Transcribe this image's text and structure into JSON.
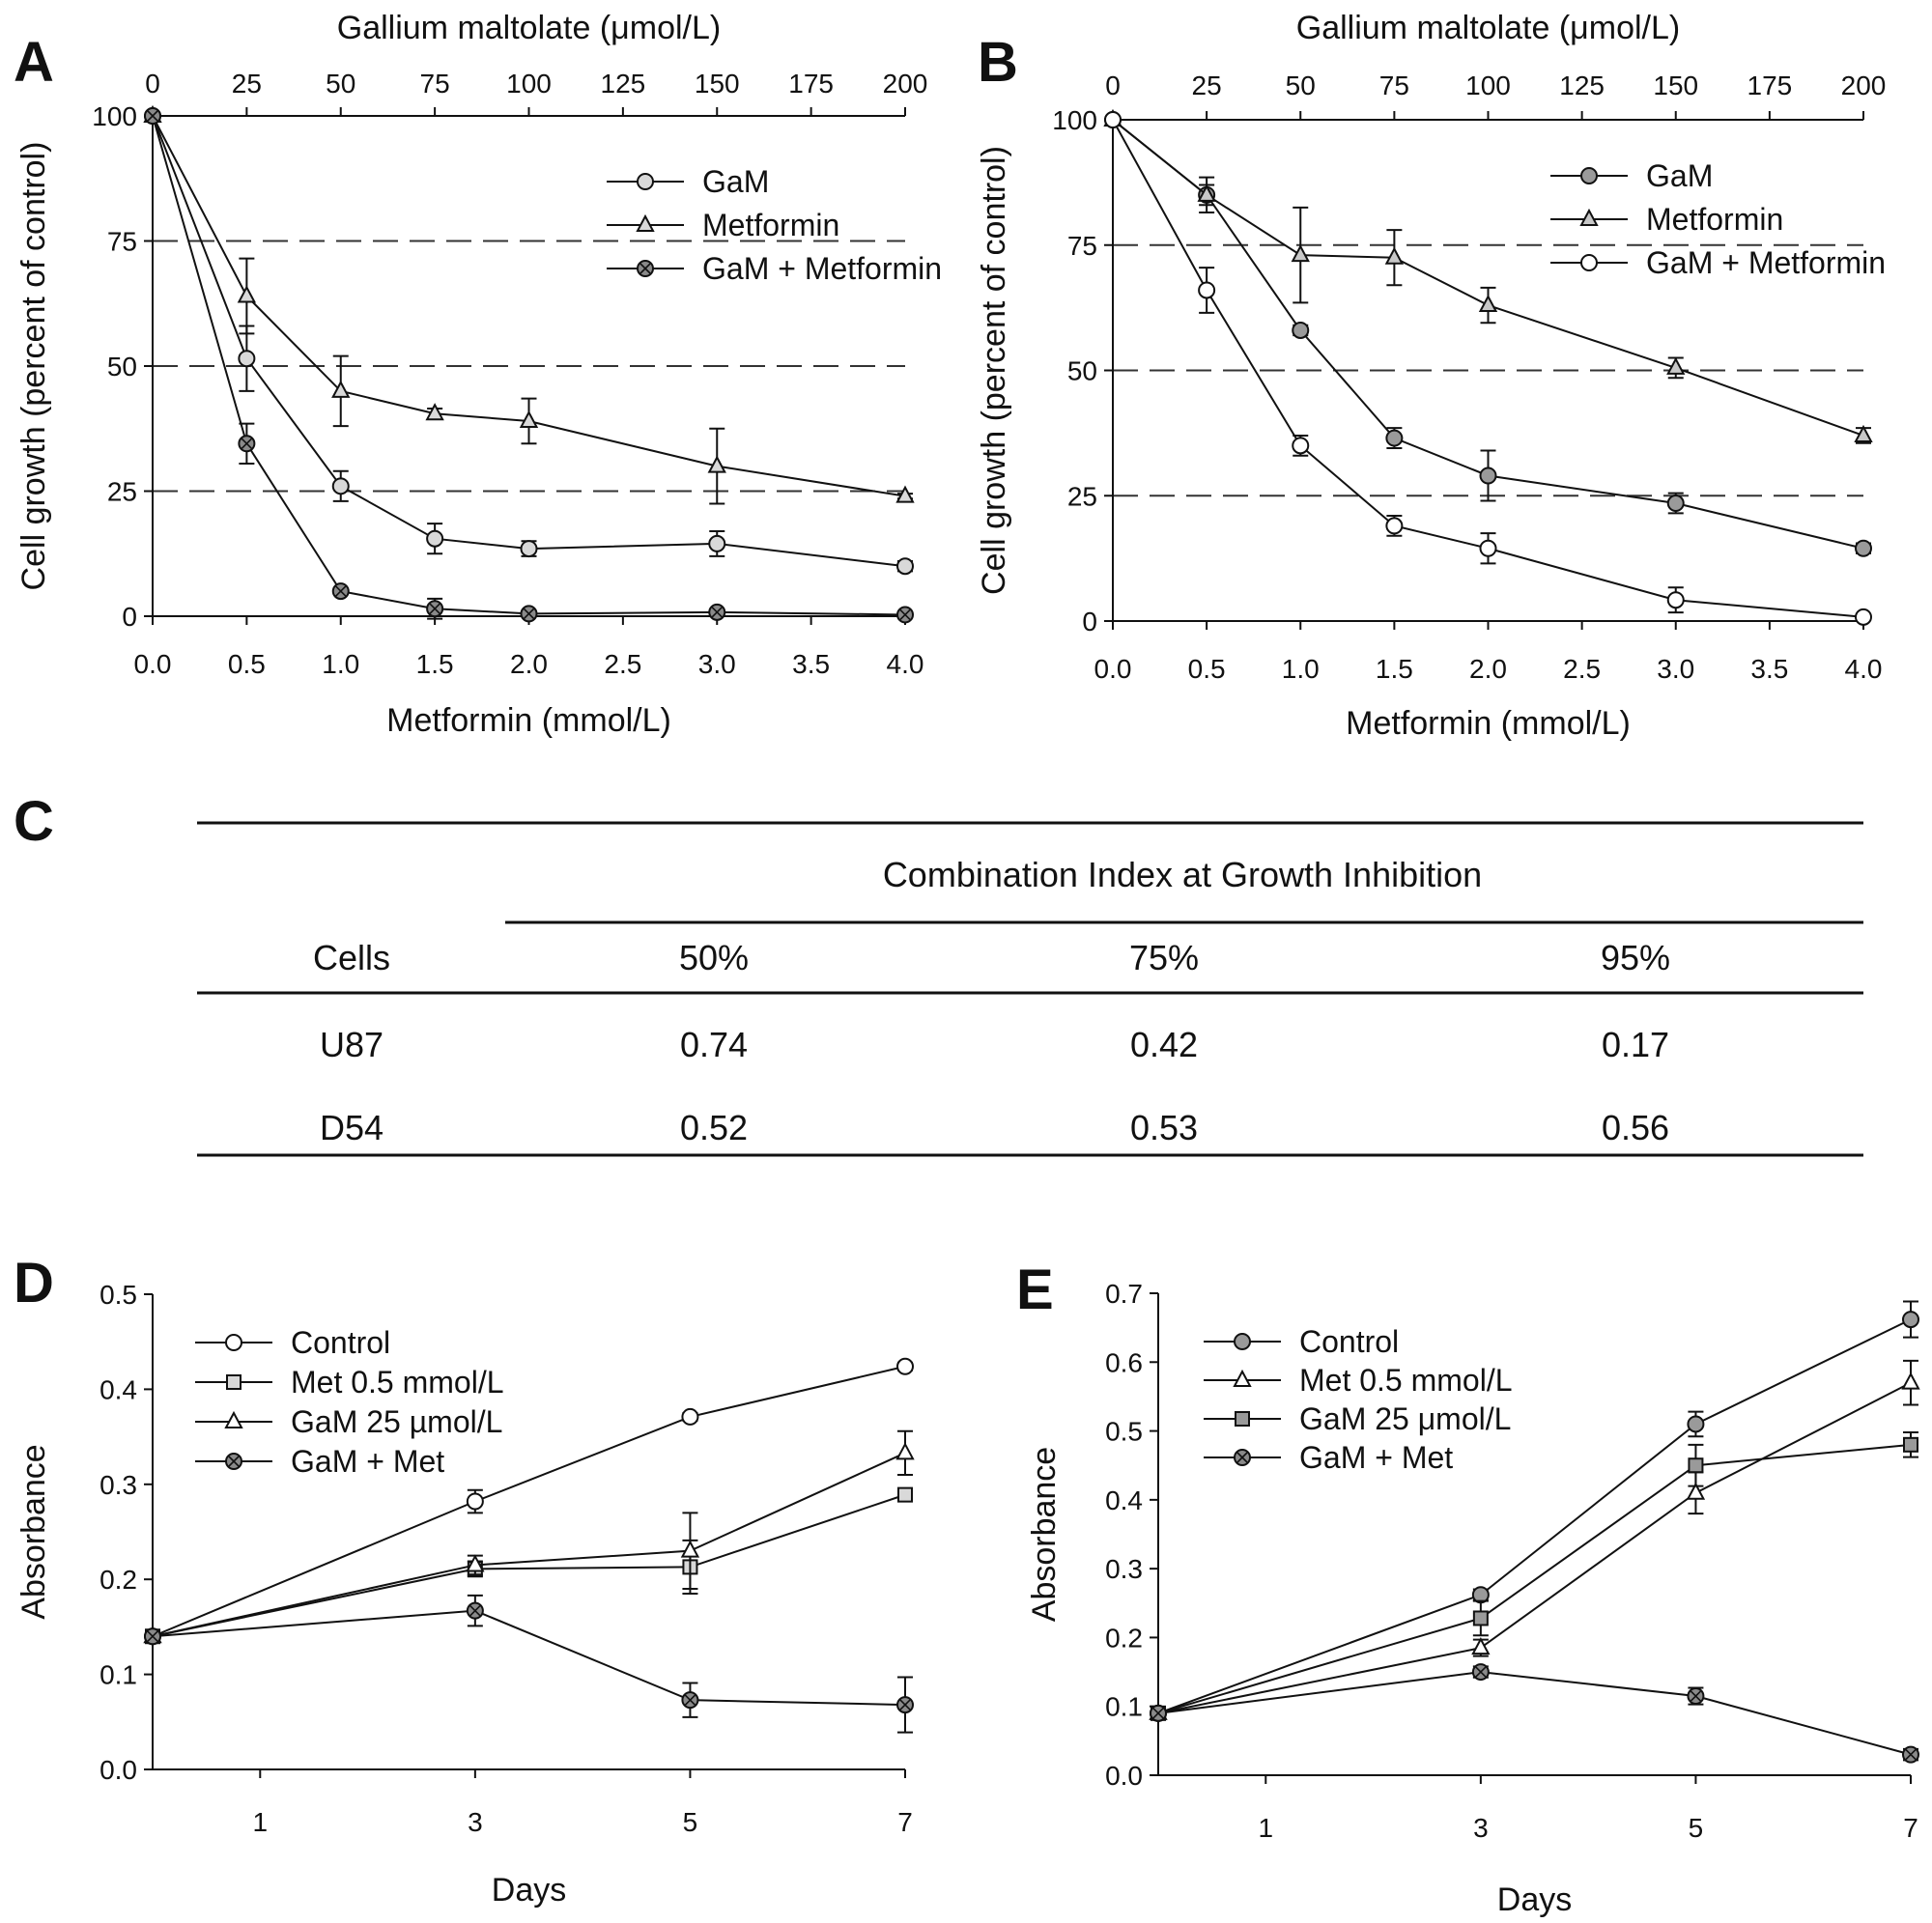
{
  "panel_letters": {
    "A": "A",
    "B": "B",
    "C": "C",
    "D": "D",
    "E": "E"
  },
  "chart_data": [
    {
      "panel": "A",
      "type": "line",
      "xlabel": "Metformin (mmol/L)",
      "x2label": "Gallium maltolate (μmol/L)",
      "ylabel": "Cell growth (percent of control)",
      "xlim": [
        0,
        4
      ],
      "x2lim": [
        0,
        200
      ],
      "ylim": [
        0,
        100
      ],
      "xticks": [
        "0.0",
        "0.5",
        "1.0",
        "1.5",
        "2.0",
        "2.5",
        "3.0",
        "3.5",
        "4.0"
      ],
      "x2ticks": [
        "0",
        "25",
        "50",
        "75",
        "100",
        "125",
        "150",
        "175",
        "200"
      ],
      "yticks": [
        "0",
        "25",
        "50",
        "75",
        "100"
      ],
      "reference_lines": [
        25,
        50,
        75
      ],
      "legend_position": "top-right",
      "x": [
        0,
        0.5,
        1,
        1.5,
        2,
        3,
        4
      ],
      "series": [
        {
          "name": "GaM",
          "marker": "circle",
          "fill": "#d9d9d9",
          "y": [
            100,
            51.5,
            26,
            15.5,
            13.5,
            14.5,
            10
          ],
          "err": [
            0,
            6.5,
            3,
            3,
            1.5,
            2.5,
            1
          ]
        },
        {
          "name": "Metformin",
          "marker": "triangle",
          "fill": "#d9d9d9",
          "y": [
            100,
            64,
            45,
            40.5,
            39,
            30,
            24
          ],
          "err": [
            0,
            7.5,
            7,
            1,
            4.5,
            7.5,
            0.5
          ]
        },
        {
          "name": "GaM + Metformin",
          "marker": "circle-cross",
          "fill": "#8a8a8a",
          "y": [
            100,
            34.5,
            5,
            1.5,
            0.5,
            0.8,
            0.3
          ],
          "err": [
            0,
            4,
            0.5,
            2,
            0.5,
            0.5,
            0.3
          ]
        }
      ]
    },
    {
      "panel": "B",
      "type": "line",
      "xlabel": "Metformin (mmol/L)",
      "x2label": "Gallium maltolate (μmol/L)",
      "ylabel": "Cell  growth (percent of control)",
      "xlim": [
        0,
        4
      ],
      "x2lim": [
        0,
        200
      ],
      "ylim": [
        0,
        100
      ],
      "xticks": [
        "0.0",
        "0.5",
        "1.0",
        "1.5",
        "2.0",
        "2.5",
        "3.0",
        "3.5",
        "4.0"
      ],
      "x2ticks": [
        "0",
        "25",
        "50",
        "75",
        "100",
        "125",
        "150",
        "175",
        "200"
      ],
      "yticks": [
        "0",
        "25",
        "50",
        "75",
        "100"
      ],
      "reference_lines": [
        25,
        50,
        75
      ],
      "legend_position": "top-right",
      "x": [
        0,
        0.5,
        1,
        1.5,
        2,
        3,
        4
      ],
      "series": [
        {
          "name": "GaM",
          "marker": "circle",
          "fill": "#9a9a9a",
          "y": [
            100,
            85,
            58,
            36.5,
            29,
            23.5,
            14.5
          ],
          "err": [
            0,
            2,
            1,
            2,
            5,
            2,
            1
          ]
        },
        {
          "name": "Metformin",
          "marker": "triangle",
          "fill": "#c8c8c8",
          "y": [
            100,
            85,
            73,
            72.5,
            63,
            50.5,
            37
          ],
          "err": [
            0,
            3.5,
            9.5,
            5.5,
            3.5,
            2,
            1.5
          ]
        },
        {
          "name": "GaM + Metformin",
          "marker": "circle",
          "fill": "#ffffff",
          "y": [
            100,
            66,
            35,
            19,
            14.5,
            4.2,
            0.8
          ],
          "err": [
            0,
            4.5,
            2,
            2,
            3,
            2.5,
            0.5
          ]
        }
      ]
    },
    {
      "panel": "C",
      "type": "table",
      "header_group": "Combination Index at Growth Inhibition",
      "columns": [
        "Cells",
        "50%",
        "75%",
        "95%"
      ],
      "rows": [
        [
          "U87",
          "0.74",
          "0.42",
          "0.17"
        ],
        [
          "D54",
          "0.52",
          "0.53",
          "0.56"
        ]
      ]
    },
    {
      "panel": "D",
      "type": "line",
      "xlabel": "Days",
      "ylabel": "Absorbance",
      "xlim": [
        0,
        7
      ],
      "ylim": [
        0,
        0.5
      ],
      "xticks": [
        "1",
        "3",
        "5",
        "7"
      ],
      "yticks": [
        "0.0",
        "0.1",
        "0.2",
        "0.3",
        "0.4",
        "0.5"
      ],
      "legend_position": "top-left",
      "x": [
        0,
        3,
        5,
        7
      ],
      "series": [
        {
          "name": "Control",
          "marker": "circle",
          "fill": "#ffffff",
          "y": [
            0.14,
            0.282,
            0.371,
            0.424
          ],
          "err": [
            0,
            0.012,
            0.004,
            0.004
          ]
        },
        {
          "name": "Met 0.5 mmol/L",
          "marker": "square",
          "fill": "#d9d9d9",
          "y": [
            0.14,
            0.211,
            0.213,
            0.289
          ],
          "err": [
            0,
            0.008,
            0.028,
            0.004
          ]
        },
        {
          "name": "GaM 25 µmol/L",
          "marker": "triangle",
          "fill": "#ffffff",
          "y": [
            0.14,
            0.215,
            0.23,
            0.333
          ],
          "err": [
            0,
            0.01,
            0.04,
            0.023
          ]
        },
        {
          "name": "GaM + Met",
          "marker": "circle-cross",
          "fill": "#8a8a8a",
          "y": [
            0.14,
            0.167,
            0.073,
            0.068
          ],
          "err": [
            0,
            0.016,
            0.018,
            0.029
          ]
        }
      ]
    },
    {
      "panel": "E",
      "type": "line",
      "xlabel": "Days",
      "ylabel": "Absorbance",
      "xlim": [
        0,
        7
      ],
      "ylim": [
        0,
        0.7
      ],
      "xticks": [
        "1",
        "3",
        "5",
        "7"
      ],
      "yticks": [
        "0.0",
        "0.1",
        "0.2",
        "0.3",
        "0.4",
        "0.5",
        "0.6",
        "0.7"
      ],
      "legend_position": "top-left",
      "x": [
        0,
        3,
        5,
        7
      ],
      "series": [
        {
          "name": "Control",
          "marker": "circle",
          "fill": "#9a9a9a",
          "y": [
            0.09,
            0.262,
            0.51,
            0.662
          ],
          "err": [
            0,
            0.008,
            0.018,
            0.026
          ]
        },
        {
          "name": "Met 0.5 mmol/L",
          "marker": "triangle",
          "fill": "#ffffff",
          "y": [
            0.09,
            0.185,
            0.41,
            0.57
          ],
          "err": [
            0,
            0.012,
            0.03,
            0.032
          ]
        },
        {
          "name": "GaM 25 μmol/L",
          "marker": "square",
          "fill": "#9a9a9a",
          "y": [
            0.09,
            0.228,
            0.45,
            0.48
          ],
          "err": [
            0,
            0.025,
            0.03,
            0.018
          ]
        },
        {
          "name": "GaM + Met",
          "marker": "circle-cross",
          "fill": "#8a8a8a",
          "y": [
            0.09,
            0.15,
            0.115,
            0.03
          ],
          "err": [
            0,
            0.008,
            0.012,
            0.008
          ]
        }
      ]
    }
  ]
}
